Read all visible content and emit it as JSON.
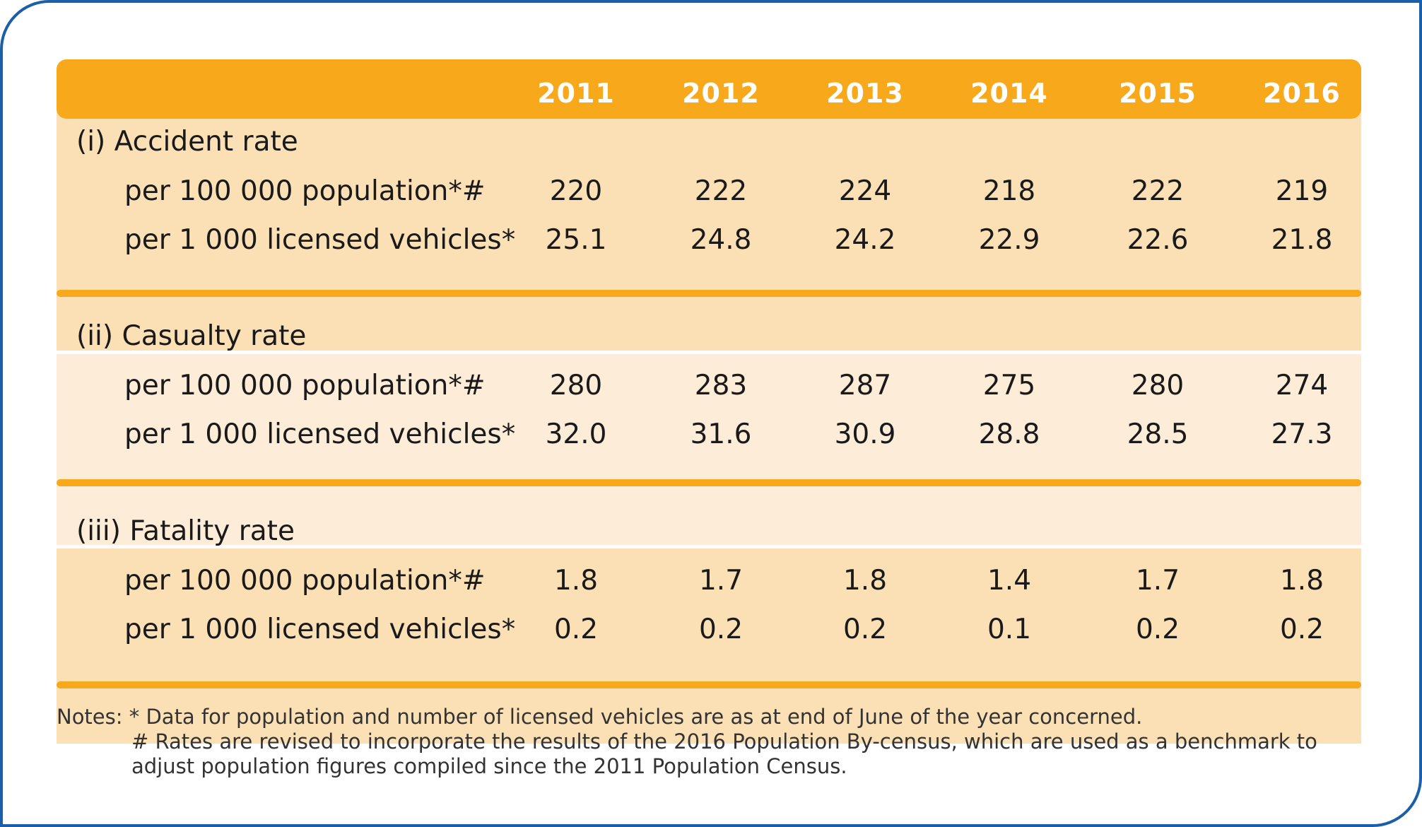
{
  "header": {
    "years": [
      "2011",
      "2012",
      "2013",
      "2014",
      "2015",
      "2016"
    ]
  },
  "sections": [
    {
      "title": "(i)  Accident rate",
      "rows": [
        {
          "label": "per 100 000 population*#",
          "values": [
            "220",
            "222",
            "224",
            "218",
            "222",
            "219"
          ]
        },
        {
          "label": "per 1 000 licensed vehicles*",
          "values": [
            "25.1",
            "24.8",
            "24.2",
            "22.9",
            "22.6",
            "21.8"
          ]
        }
      ]
    },
    {
      "title": "(ii) Casualty rate",
      "rows": [
        {
          "label": "per 100 000 population*#",
          "values": [
            "280",
            "283",
            "287",
            "275",
            "280",
            "274"
          ]
        },
        {
          "label": "per 1 000 licensed vehicles*",
          "values": [
            "32.0",
            "31.6",
            "30.9",
            "28.8",
            "28.5",
            "27.3"
          ]
        }
      ]
    },
    {
      "title": "(iii) Fatality rate",
      "rows": [
        {
          "label": "per 100 000 population*#",
          "values": [
            "1.8",
            "1.7",
            "1.8",
            "1.4",
            "1.7",
            "1.8"
          ]
        },
        {
          "label": "per 1 000 licensed vehicles*",
          "values": [
            "0.2",
            "0.2",
            "0.2",
            "0.1",
            "0.2",
            "0.2"
          ]
        }
      ]
    }
  ],
  "notes": {
    "line1": "Notes: *  Data for population and number of licensed vehicles are as at end of June of the year concerned.",
    "line2": "# Rates are revised to incorporate the results of the 2016 Population By-census, which are used as a benchmark to",
    "line3": "adjust population figures compiled since the 2011 Population Census."
  },
  "colors": {
    "accent_orange": "#f7a81b",
    "section_bg_dark": "#fce0b5",
    "section_bg_light": "#fdecd7",
    "frame_blue": "#1b5fa8"
  }
}
